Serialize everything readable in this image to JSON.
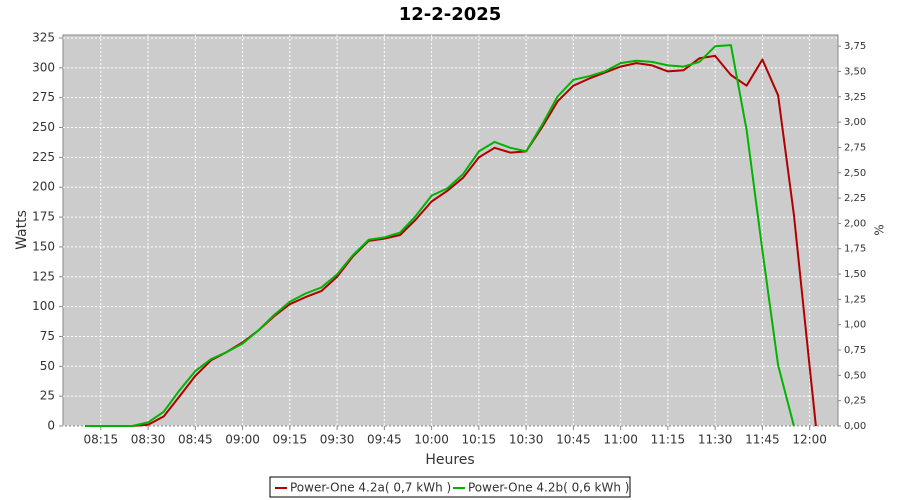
{
  "chart_data": {
    "type": "line",
    "title": "12-2-2025",
    "x_label": "Heures",
    "y_label": "Watts",
    "y2_label": "%",
    "x": [
      "08:10",
      "08:15",
      "08:20",
      "08:25",
      "08:30",
      "08:35",
      "08:40",
      "08:45",
      "08:50",
      "08:55",
      "09:00",
      "09:05",
      "09:10",
      "09:15",
      "09:20",
      "09:25",
      "09:30",
      "09:35",
      "09:40",
      "09:45",
      "09:50",
      "09:55",
      "10:00",
      "10:05",
      "10:10",
      "10:15",
      "10:20",
      "10:25",
      "10:30",
      "10:35",
      "10:40",
      "10:45",
      "10:50",
      "10:55",
      "11:00",
      "11:05",
      "11:10",
      "11:15",
      "11:20",
      "11:25",
      "11:30",
      "11:35",
      "11:40",
      "11:45",
      "11:50",
      "11:55",
      "12:00",
      "12:02"
    ],
    "series": [
      {
        "name": "Power-One 4.2a( 0,7 kWh )",
        "color": "#b00000",
        "values": [
          0,
          0,
          0,
          0,
          1,
          8,
          25,
          42,
          55,
          62,
          70,
          80,
          92,
          102,
          108,
          113,
          125,
          142,
          155,
          157,
          160,
          173,
          188,
          197,
          208,
          225,
          233,
          229,
          230,
          250,
          272,
          285,
          291,
          296,
          301,
          304,
          302,
          297,
          298,
          308,
          310,
          294,
          285,
          307,
          277,
          177,
          50,
          0
        ]
      },
      {
        "name": "Power-One 4.2b( 0,6 kWh )",
        "color": "#00b400",
        "values": [
          0,
          0,
          0,
          0,
          3,
          12,
          30,
          46,
          56,
          62,
          69,
          80,
          93,
          104,
          111,
          116,
          127,
          143,
          156,
          158,
          162,
          176,
          193,
          199,
          211,
          230,
          238,
          233,
          230,
          252,
          276,
          290,
          293,
          297,
          304,
          306,
          305,
          302,
          301,
          305,
          318,
          319,
          248,
          147,
          51,
          0,
          null,
          null
        ]
      }
    ],
    "xlim": [
      "08:03",
      "12:09"
    ],
    "xticks": [
      "08:15",
      "08:30",
      "08:45",
      "09:00",
      "09:15",
      "09:30",
      "09:45",
      "10:00",
      "10:15",
      "10:30",
      "10:45",
      "11:00",
      "11:15",
      "11:30",
      "11:45",
      "12:00"
    ],
    "ylim": [
      0,
      327.5
    ],
    "yticks": [
      0,
      25,
      50,
      75,
      100,
      125,
      150,
      175,
      200,
      225,
      250,
      275,
      300,
      325
    ],
    "y2lim": [
      0,
      3.86
    ],
    "y2ticks": [
      {
        "value": 0,
        "label": "0,00"
      },
      {
        "value": 0.25,
        "label": "0,25"
      },
      {
        "value": 0.5,
        "label": "0,50"
      },
      {
        "value": 0.75,
        "label": "0,75"
      },
      {
        "value": 1,
        "label": "1,00"
      },
      {
        "value": 1.25,
        "label": "1,25"
      },
      {
        "value": 1.5,
        "label": "1,50"
      },
      {
        "value": 1.75,
        "label": "1,75"
      },
      {
        "value": 2,
        "label": "2,00"
      },
      {
        "value": 2.25,
        "label": "2,25"
      },
      {
        "value": 2.5,
        "label": "2,50"
      },
      {
        "value": 2.75,
        "label": "2,75"
      },
      {
        "value": 3,
        "label": "3,00"
      },
      {
        "value": 3.25,
        "label": "3,25"
      },
      {
        "value": 3.5,
        "label": "3,50"
      },
      {
        "value": 3.75,
        "label": "3,75"
      }
    ],
    "grid": true
  }
}
